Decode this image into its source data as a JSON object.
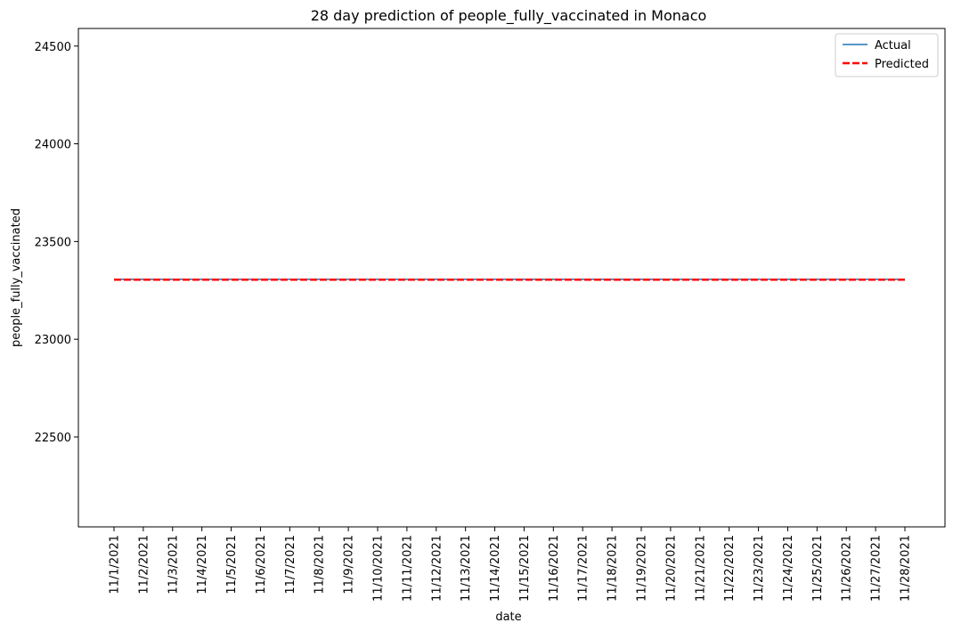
{
  "chart_data": {
    "type": "line",
    "title": "28 day prediction of people_fully_vaccinated in Monaco",
    "xlabel": "date",
    "ylabel": "people_fully_vaccinated",
    "categories": [
      "11/1/2021",
      "11/2/2021",
      "11/3/2021",
      "11/4/2021",
      "11/5/2021",
      "11/6/2021",
      "11/7/2021",
      "11/8/2021",
      "11/9/2021",
      "11/10/2021",
      "11/11/2021",
      "11/12/2021",
      "11/13/2021",
      "11/14/2021",
      "11/15/2021",
      "11/16/2021",
      "11/17/2021",
      "11/18/2021",
      "11/19/2021",
      "11/20/2021",
      "11/21/2021",
      "11/22/2021",
      "11/23/2021",
      "11/24/2021",
      "11/25/2021",
      "11/26/2021",
      "11/27/2021",
      "11/28/2021"
    ],
    "ylim": [
      22040,
      24590
    ],
    "yticks": [
      22500,
      23000,
      23500,
      24000,
      24500
    ],
    "series": [
      {
        "name": "Actual",
        "color": "#1f77b4",
        "style": "solid",
        "values": [
          23307,
          23307,
          23307,
          23307,
          23307,
          23307,
          23307,
          23307,
          23307,
          23307,
          23307,
          23307,
          23307,
          23307,
          23307,
          23307,
          23307,
          23307,
          23307,
          23307,
          23307,
          23307,
          23307,
          23307,
          23307,
          23307,
          23307,
          23307
        ]
      },
      {
        "name": "Predicted",
        "color": "#ff0000",
        "style": "dashed",
        "values": [
          23305,
          23305,
          23305,
          23305,
          23305,
          23305,
          23305,
          23305,
          23305,
          23305,
          23305,
          23305,
          23305,
          23305,
          23305,
          23305,
          23305,
          23305,
          23305,
          23305,
          23305,
          23305,
          23305,
          23305,
          23305,
          23305,
          23305,
          23305
        ]
      }
    ],
    "legend": "top-right",
    "grid": false
  }
}
